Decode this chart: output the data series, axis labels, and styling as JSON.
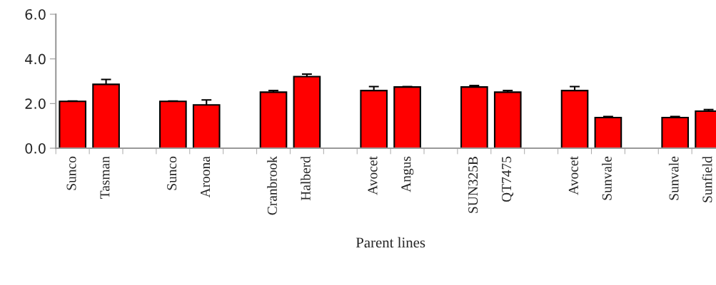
{
  "chart_data": {
    "type": "bar",
    "xlabel": "Parent lines",
    "categories": [
      "Sunco",
      "Tasman",
      null,
      "Sunco",
      "Aroona",
      null,
      "Cranbrook",
      "Halberd",
      null,
      "Avocet",
      "Angus",
      null,
      "SUN325B",
      "QT7475",
      null,
      "Avocet",
      "Sunvale",
      null,
      "Sunvale",
      "Sunfield"
    ],
    "values": [
      2.1,
      2.86,
      null,
      2.1,
      1.94,
      null,
      2.51,
      3.21,
      null,
      2.58,
      2.74,
      null,
      2.74,
      2.51,
      null,
      2.58,
      1.37,
      null,
      1.37,
      1.66
    ],
    "errors": [
      0.01,
      0.22,
      null,
      0.01,
      0.22,
      null,
      0.07,
      0.11,
      null,
      0.18,
      0.02,
      null,
      0.07,
      0.07,
      null,
      0.18,
      0.05,
      null,
      0.05,
      0.07
    ],
    "color": "#ff0000",
    "ylim": [
      0,
      6
    ],
    "yticks": [
      {
        "value": 0,
        "label": "0.0"
      },
      {
        "value": 2,
        "label": "2.0"
      },
      {
        "value": 4,
        "label": "4.0"
      },
      {
        "value": 6,
        "label": "6.0"
      }
    ],
    "grid": false,
    "legend": false
  }
}
